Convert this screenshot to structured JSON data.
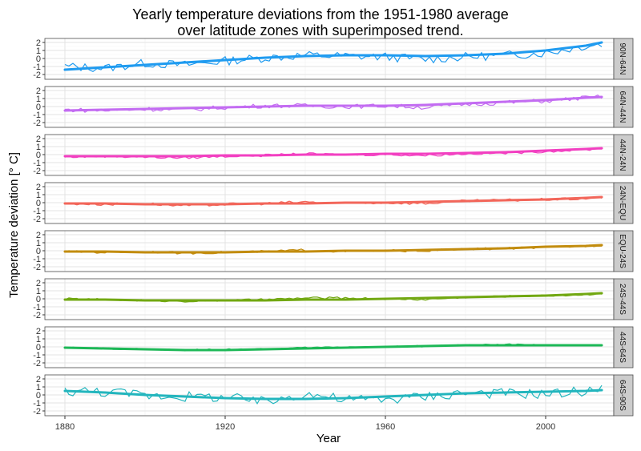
{
  "chart_data": {
    "type": "line",
    "title_lines": [
      "Yearly temperature deviations from the 1951-1980 average",
      "over latitude zones with superimposed trend."
    ],
    "xlabel": "Year",
    "ylabel": "Temperature deviation [° C]",
    "xlim": [
      1875,
      2017
    ],
    "ylim": [
      -2.6,
      2.5
    ],
    "x_ticks": [
      1880,
      1920,
      1960,
      2000
    ],
    "y_ticks": [
      -2,
      -1,
      0,
      1,
      2
    ],
    "grid": true,
    "legend": "none",
    "series": [
      {
        "name": "90N-64N",
        "color": "#1f9bf0",
        "x": [
          1880,
          1890,
          1900,
          1910,
          1920,
          1930,
          1940,
          1950,
          1960,
          1970,
          1980,
          1990,
          2000,
          2010,
          2014
        ],
        "values": [
          -1.0,
          -1.2,
          -0.6,
          -0.8,
          -0.3,
          0.1,
          0.4,
          0.3,
          0.2,
          -0.1,
          0.2,
          0.4,
          0.7,
          1.6,
          1.8
        ],
        "trend": [
          -1.4,
          -1.1,
          -0.8,
          -0.5,
          -0.2,
          0.1,
          0.3,
          0.4,
          0.4,
          0.3,
          0.4,
          0.6,
          1.0,
          1.6,
          2.0
        ]
      },
      {
        "name": "64N-44N",
        "color": "#c36cf2",
        "x": [
          1880,
          1890,
          1900,
          1910,
          1920,
          1930,
          1940,
          1950,
          1960,
          1970,
          1980,
          1990,
          2000,
          2010,
          2014
        ],
        "values": [
          -0.4,
          -0.5,
          -0.3,
          -0.4,
          -0.1,
          0.1,
          0.1,
          0.0,
          0.1,
          -0.1,
          0.3,
          0.5,
          0.7,
          1.1,
          1.2
        ],
        "trend": [
          -0.5,
          -0.4,
          -0.3,
          -0.2,
          -0.1,
          0.0,
          0.1,
          0.1,
          0.1,
          0.2,
          0.4,
          0.6,
          0.8,
          1.1,
          1.2
        ]
      },
      {
        "name": "44N-24N",
        "color": "#f23fc1",
        "x": [
          1880,
          1890,
          1900,
          1910,
          1920,
          1930,
          1940,
          1950,
          1960,
          1970,
          1980,
          1990,
          2000,
          2010,
          2014
        ],
        "values": [
          -0.3,
          -0.2,
          -0.3,
          -0.4,
          -0.2,
          -0.1,
          0.1,
          0.0,
          0.0,
          -0.1,
          0.1,
          0.2,
          0.4,
          0.6,
          0.8
        ],
        "trend": [
          -0.2,
          -0.2,
          -0.2,
          -0.2,
          -0.1,
          -0.1,
          0.0,
          0.0,
          0.1,
          0.1,
          0.2,
          0.3,
          0.5,
          0.7,
          0.8
        ]
      },
      {
        "name": "24N-EQU",
        "color": "#f2665a",
        "x": [
          1880,
          1890,
          1900,
          1910,
          1920,
          1930,
          1940,
          1950,
          1960,
          1970,
          1980,
          1990,
          2000,
          2010,
          2014
        ],
        "values": [
          -0.1,
          -0.2,
          -0.1,
          -0.4,
          -0.2,
          -0.1,
          0.1,
          -0.1,
          0.0,
          -0.1,
          0.2,
          0.3,
          0.4,
          0.5,
          0.7
        ],
        "trend": [
          -0.1,
          -0.1,
          -0.2,
          -0.2,
          -0.2,
          -0.1,
          -0.1,
          0.0,
          0.0,
          0.1,
          0.2,
          0.3,
          0.4,
          0.6,
          0.7
        ]
      },
      {
        "name": "EQU-24S",
        "color": "#c28c0e",
        "x": [
          1880,
          1890,
          1900,
          1910,
          1920,
          1930,
          1940,
          1950,
          1960,
          1970,
          1980,
          1990,
          2000,
          2010,
          2014
        ],
        "values": [
          -0.1,
          -0.2,
          -0.1,
          -0.3,
          -0.2,
          -0.1,
          0.1,
          -0.1,
          0.0,
          0.0,
          0.2,
          0.3,
          0.4,
          0.6,
          0.7
        ],
        "trend": [
          -0.1,
          -0.1,
          -0.2,
          -0.2,
          -0.2,
          -0.1,
          -0.1,
          0.0,
          0.0,
          0.1,
          0.2,
          0.3,
          0.5,
          0.6,
          0.7
        ]
      },
      {
        "name": "24S-44S",
        "color": "#72a812",
        "x": [
          1880,
          1890,
          1900,
          1910,
          1920,
          1930,
          1940,
          1950,
          1960,
          1970,
          1980,
          1990,
          2000,
          2010,
          2014
        ],
        "values": [
          0.0,
          -0.1,
          -0.2,
          -0.3,
          -0.2,
          -0.1,
          0.1,
          0.1,
          0.0,
          -0.1,
          0.2,
          0.3,
          0.4,
          0.5,
          0.7
        ],
        "trend": [
          -0.1,
          -0.1,
          -0.2,
          -0.2,
          -0.2,
          -0.2,
          -0.1,
          -0.1,
          0.0,
          0.1,
          0.2,
          0.3,
          0.4,
          0.6,
          0.7
        ]
      },
      {
        "name": "44S-64S",
        "color": "#1db857",
        "x": [
          1880,
          1890,
          1900,
          1910,
          1920,
          1930,
          1940,
          1950,
          1960,
          1970,
          1980,
          1990,
          2000,
          2010,
          2014
        ],
        "values": [
          -0.1,
          -0.2,
          -0.3,
          -0.4,
          -0.3,
          -0.3,
          -0.1,
          0.0,
          0.0,
          0.1,
          0.2,
          0.3,
          0.2,
          0.2,
          0.1
        ],
        "trend": [
          -0.1,
          -0.2,
          -0.3,
          -0.4,
          -0.4,
          -0.3,
          -0.2,
          -0.1,
          0.0,
          0.1,
          0.2,
          0.2,
          0.2,
          0.2,
          0.2
        ]
      },
      {
        "name": "64S-90S",
        "color": "#22b5bd",
        "x": [
          1880,
          1890,
          1900,
          1910,
          1920,
          1930,
          1940,
          1950,
          1960,
          1970,
          1980,
          1990,
          2000,
          2010,
          2014
        ],
        "values": [
          0.5,
          0.4,
          0.0,
          -0.2,
          -0.3,
          -0.9,
          0.2,
          -0.6,
          -0.5,
          -0.2,
          0.3,
          0.2,
          0.1,
          0.5,
          0.6
        ],
        "trend": [
          0.5,
          0.3,
          0.0,
          -0.2,
          -0.4,
          -0.5,
          -0.5,
          -0.4,
          -0.2,
          0.0,
          0.2,
          0.3,
          0.4,
          0.5,
          0.6
        ]
      }
    ]
  }
}
